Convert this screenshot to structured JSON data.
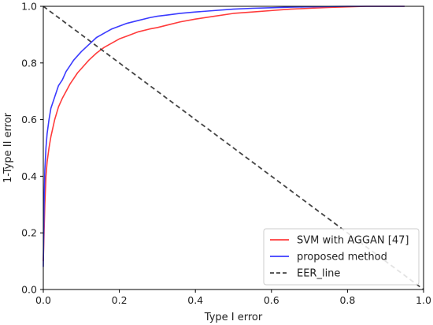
{
  "chart_data": {
    "type": "line",
    "xlabel": "Type I error",
    "ylabel": "1-Type II error",
    "xlim": [
      0.0,
      1.0
    ],
    "ylim": [
      0.0,
      1.0
    ],
    "x_ticks": [
      "0.0",
      "0.2",
      "0.4",
      "0.6",
      "0.8",
      "1.0"
    ],
    "y_ticks": [
      "0.0",
      "0.2",
      "0.4",
      "0.6",
      "0.8",
      "1.0"
    ],
    "grid": false,
    "legend_position": "lower-right",
    "series": [
      {
        "name": "SVM with AGGAN [47]",
        "color": "#ff3b3b",
        "style": "solid",
        "x": [
          0.0,
          0.002,
          0.004,
          0.007,
          0.01,
          0.015,
          0.02,
          0.03,
          0.04,
          0.05,
          0.06,
          0.07,
          0.08,
          0.09,
          0.1,
          0.12,
          0.14,
          0.16,
          0.18,
          0.2,
          0.22,
          0.25,
          0.28,
          0.3,
          0.33,
          0.36,
          0.4,
          0.45,
          0.5,
          0.55,
          0.6,
          0.65,
          0.7,
          0.75,
          0.8,
          0.85,
          0.9,
          0.95
        ],
        "y": [
          0.1,
          0.2,
          0.3,
          0.4,
          0.45,
          0.5,
          0.54,
          0.6,
          0.645,
          0.675,
          0.7,
          0.725,
          0.745,
          0.765,
          0.78,
          0.81,
          0.835,
          0.855,
          0.87,
          0.885,
          0.895,
          0.91,
          0.92,
          0.925,
          0.935,
          0.945,
          0.955,
          0.965,
          0.975,
          0.98,
          0.985,
          0.99,
          0.993,
          0.996,
          0.998,
          1.0,
          1.0,
          1.0
        ]
      },
      {
        "name": "proposed method",
        "color": "#3b3bff",
        "style": "solid",
        "x": [
          0.0,
          0.002,
          0.004,
          0.007,
          0.01,
          0.015,
          0.02,
          0.03,
          0.04,
          0.05,
          0.06,
          0.07,
          0.08,
          0.09,
          0.1,
          0.12,
          0.14,
          0.16,
          0.18,
          0.2,
          0.22,
          0.25,
          0.28,
          0.3,
          0.33,
          0.36,
          0.4,
          0.45,
          0.5,
          0.55,
          0.6,
          0.65,
          0.7,
          0.75,
          0.8,
          0.85,
          0.9,
          0.95
        ],
        "y": [
          0.08,
          0.3,
          0.42,
          0.5,
          0.55,
          0.6,
          0.64,
          0.68,
          0.72,
          0.74,
          0.77,
          0.79,
          0.81,
          0.825,
          0.84,
          0.865,
          0.89,
          0.905,
          0.92,
          0.93,
          0.94,
          0.95,
          0.96,
          0.965,
          0.97,
          0.975,
          0.98,
          0.985,
          0.99,
          0.993,
          0.995,
          0.997,
          0.998,
          0.999,
          1.0,
          1.0,
          1.0,
          1.0
        ]
      },
      {
        "name": "EER_line",
        "color": "#444444",
        "style": "dashed",
        "x": [
          0.0,
          1.0
        ],
        "y": [
          1.0,
          0.0
        ]
      }
    ]
  }
}
